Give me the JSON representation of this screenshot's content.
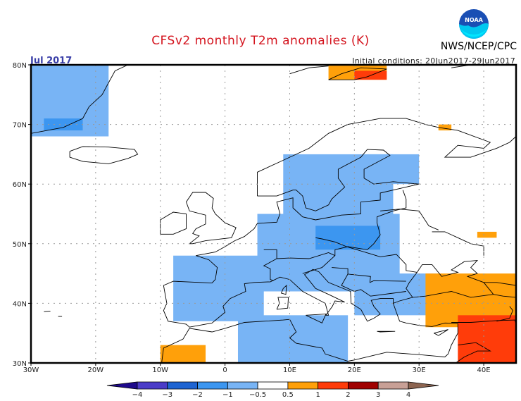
{
  "header": {
    "title": "CFSv2 monthly T2m anomalies (K)",
    "month": "Jul 2017",
    "initial_conditions": "Initial conditions: 20Jun2017-29Jun2017",
    "organization": "NWS/NCEP/CPC",
    "logo_text": "NOAA"
  },
  "chart_data": {
    "type": "heatmap",
    "title": "CFSv2 monthly T2m anomalies (K)",
    "units": "K",
    "lon_range": [
      -30,
      45
    ],
    "lat_range": [
      30,
      80
    ],
    "x_ticks": [
      {
        "value": -30,
        "label": "30W"
      },
      {
        "value": -20,
        "label": "20W"
      },
      {
        "value": -10,
        "label": "10W"
      },
      {
        "value": 0,
        "label": "0"
      },
      {
        "value": 10,
        "label": "10E"
      },
      {
        "value": 20,
        "label": "20E"
      },
      {
        "value": 30,
        "label": "30E"
      },
      {
        "value": 40,
        "label": "40E"
      }
    ],
    "y_ticks": [
      {
        "value": 30,
        "label": "30N"
      },
      {
        "value": 40,
        "label": "40N"
      },
      {
        "value": 50,
        "label": "50N"
      },
      {
        "value": 60,
        "label": "60N"
      },
      {
        "value": 70,
        "label": "70N"
      },
      {
        "value": 80,
        "label": "80N"
      }
    ],
    "grid": true,
    "colorbar": {
      "placement": "bottom",
      "bins": [
        {
          "range": "< -4",
          "color": "#1e0a8c"
        },
        {
          "range": "-4 to -3",
          "color": "#4b3cc8"
        },
        {
          "range": "-3 to -2",
          "color": "#1e64d2"
        },
        {
          "range": "-2 to -1",
          "color": "#3c96f0"
        },
        {
          "range": "-1 to -0.5",
          "color": "#78b4f5"
        },
        {
          "range": "-0.5 to 0.5",
          "color": "#ffffff"
        },
        {
          "range": "0.5 to 1",
          "color": "#ffa00a"
        },
        {
          "range": "1 to 2",
          "color": "#ff3c0a"
        },
        {
          "range": "2 to 3",
          "color": "#a00000"
        },
        {
          "range": "3 to 4",
          "color": "#c8a096"
        },
        {
          "range": "> 4",
          "color": "#8c6450"
        }
      ],
      "tick_labels": [
        "-4",
        "-3",
        "-2",
        "-1",
        "-0.5",
        "0.5",
        "1",
        "2",
        "3",
        "4"
      ]
    },
    "anomaly_regions": [
      {
        "name": "Greenland east coast",
        "lon": [
          -30,
          -18
        ],
        "lat": [
          68,
          80
        ],
        "value": -0.7
      },
      {
        "name": "Greenland coast patch",
        "lon": [
          -28,
          -22
        ],
        "lat": [
          69,
          71
        ],
        "value": -1.5
      },
      {
        "name": "Svalbard warm",
        "lon": [
          16,
          25
        ],
        "lat": [
          77.5,
          80
        ],
        "value": 0.7
      },
      {
        "name": "Svalbard hot",
        "lon": [
          20,
          25
        ],
        "lat": [
          77.5,
          79
        ],
        "value": 1.5
      },
      {
        "name": "Scandinavia / Baltic",
        "lon": [
          9,
          26
        ],
        "lat": [
          55,
          65
        ],
        "value": -0.7
      },
      {
        "name": "Finland",
        "lon": [
          22,
          30
        ],
        "lat": [
          60,
          65
        ],
        "value": -0.8
      },
      {
        "name": "Central Europe",
        "lon": [
          5,
          27
        ],
        "lat": [
          42,
          55
        ],
        "value": -0.8
      },
      {
        "name": "Poland core",
        "lon": [
          14,
          24
        ],
        "lat": [
          49,
          53
        ],
        "value": -1.3
      },
      {
        "name": "France / Iberia",
        "lon": [
          -8,
          6
        ],
        "lat": [
          37,
          48
        ],
        "value": -0.7
      },
      {
        "name": "Balkans / Turkey west",
        "lon": [
          20,
          33
        ],
        "lat": [
          38,
          45
        ],
        "value": -0.8
      },
      {
        "name": "North Africa",
        "lon": [
          2,
          19
        ],
        "lat": [
          30,
          38
        ],
        "value": -0.7
      },
      {
        "name": "Morocco",
        "lon": [
          -10,
          -3
        ],
        "lat": [
          30,
          33
        ],
        "value": 0.7
      },
      {
        "name": "Turkey east / Caucasus",
        "lon": [
          31,
          45
        ],
        "lat": [
          36,
          45
        ],
        "value": 0.8
      },
      {
        "name": "Middle East",
        "lon": [
          36,
          45
        ],
        "lat": [
          30,
          38
        ],
        "value": 1.3
      },
      {
        "name": "Russia north",
        "lon": [
          33,
          35
        ],
        "lat": [
          69,
          70
        ],
        "value": 0.7
      },
      {
        "name": "Russia central",
        "lon": [
          39,
          42
        ],
        "lat": [
          51,
          52
        ],
        "value": 0.7
      }
    ]
  }
}
